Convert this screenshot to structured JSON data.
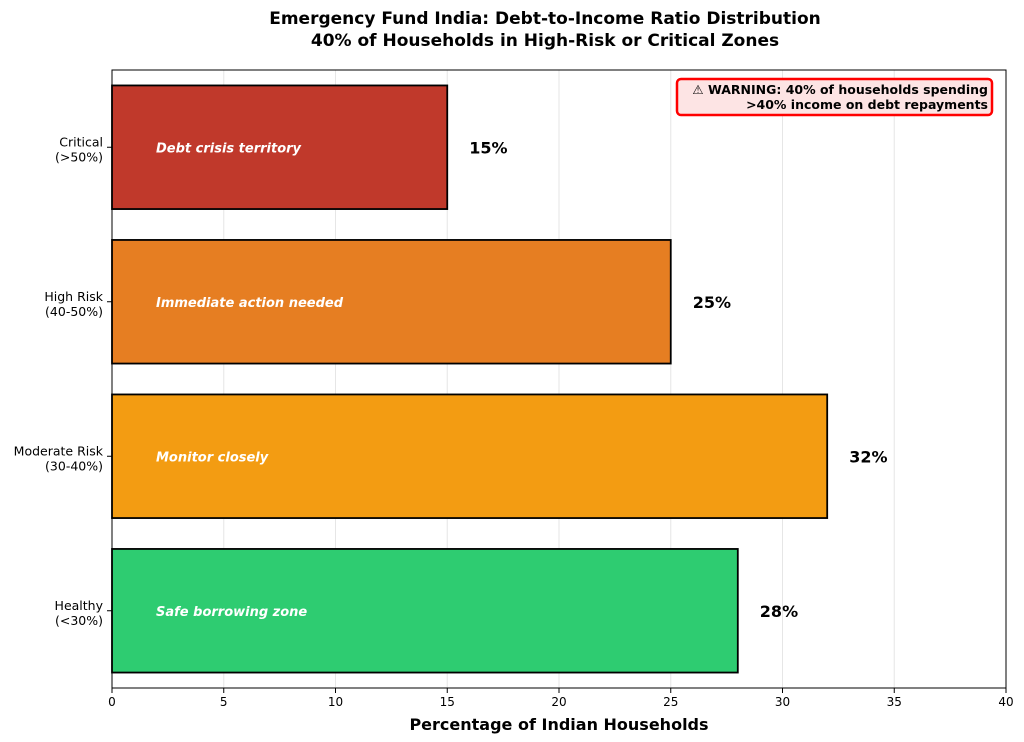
{
  "chart_data": {
    "type": "bar",
    "orientation": "horizontal",
    "title": "Emergency Fund India: Debt-to-Income Ratio Distribution",
    "subtitle": "40% of Households in High-Risk or Critical Zones",
    "xlabel": "Percentage of Indian Households",
    "ylabel": "",
    "xlim": [
      0,
      40
    ],
    "xticks": [
      "0",
      "5",
      "10",
      "15",
      "20",
      "25",
      "30",
      "35",
      "40"
    ],
    "grid": "vertical",
    "categories": [
      {
        "line1": "Critical",
        "line2": "(>50%)"
      },
      {
        "line1": "High Risk",
        "line2": "(40-50%)"
      },
      {
        "line1": "Moderate Risk",
        "line2": "(30-40%)"
      },
      {
        "line1": "Healthy",
        "line2": "(<30%)"
      }
    ],
    "values": [
      15,
      25,
      32,
      28
    ],
    "value_labels": [
      "15%",
      "25%",
      "32%",
      "28%"
    ],
    "bar_annotations": [
      "Debt crisis territory",
      "Immediate action needed",
      "Monitor closely",
      "Safe borrowing zone"
    ],
    "colors": [
      "#c0392b",
      "#e67e22",
      "#f39c12",
      "#2ecc71"
    ],
    "warning": {
      "icon": "warning-icon",
      "line1": "⚠ WARNING: 40% of households spending",
      "line2": ">40% income on debt repayments",
      "border_color": "#ff0000",
      "fill_color": "#fde4e4"
    }
  }
}
